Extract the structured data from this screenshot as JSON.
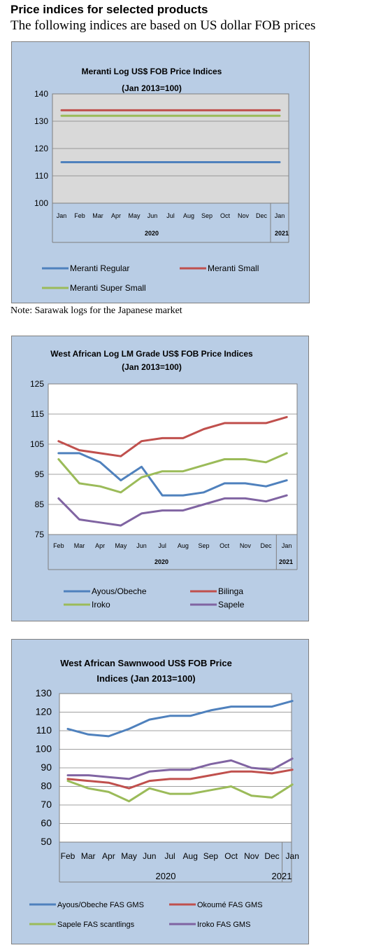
{
  "page": {
    "heading": "Price indices for selected products",
    "subheading": "The following indices are based on US dollar FOB prices",
    "note": "Note: Sarawak logs for the Japanese market"
  },
  "chart_data": [
    {
      "type": "line",
      "title": [
        "Meranti Log US$ FOB Price Indices",
        "(Jan 2013=100)"
      ],
      "categories": [
        "Jan",
        "Feb",
        "Mar",
        "Apr",
        "May",
        "Jun",
        "Jul",
        "Aug",
        "Sep",
        "Oct",
        "Nov",
        "Dec",
        "Jan"
      ],
      "year_labels": [
        "2020",
        "2021"
      ],
      "ylim": [
        100,
        140
      ],
      "yticks": [
        100,
        110,
        120,
        130,
        140
      ],
      "grid": true,
      "plot_background": "#d9d9d9",
      "legend_position": "bottom",
      "series": [
        {
          "name": "Meranti Regular",
          "color": "#4f81bd",
          "values": [
            115,
            115,
            115,
            115,
            115,
            115,
            115,
            115,
            115,
            115,
            115,
            115,
            115
          ]
        },
        {
          "name": "Meranti Small",
          "color": "#c0504d",
          "values": [
            134,
            134,
            134,
            134,
            134,
            134,
            134,
            134,
            134,
            134,
            134,
            134,
            134
          ]
        },
        {
          "name": "Meranti Super Small",
          "color": "#9bbb59",
          "values": [
            132,
            132,
            132,
            132,
            132,
            132,
            132,
            132,
            132,
            132,
            132,
            132,
            132
          ]
        }
      ]
    },
    {
      "type": "line",
      "title": [
        "West African Log LM Grade US$ FOB Price Indices",
        "(Jan 2013=100)"
      ],
      "categories": [
        "Feb",
        "Mar",
        "Apr",
        "May",
        "Jun",
        "Jul",
        "Aug",
        "Sep",
        "Oct",
        "Nov",
        "Dec",
        "Jan"
      ],
      "year_labels": [
        "2020",
        "2021"
      ],
      "ylim": [
        75,
        125
      ],
      "yticks": [
        75,
        85,
        95,
        105,
        115,
        125
      ],
      "grid": true,
      "plot_background": "#ffffff",
      "legend_position": "bottom",
      "series": [
        {
          "name": "Ayous/Obeche",
          "color": "#4f81bd",
          "values": [
            102,
            102,
            99,
            93,
            97.5,
            88,
            88,
            89,
            92,
            92,
            91,
            93
          ]
        },
        {
          "name": "Bilinga",
          "color": "#c0504d",
          "values": [
            106,
            103,
            102,
            101,
            106,
            107,
            107,
            110,
            112,
            112,
            112,
            114
          ]
        },
        {
          "name": "Iroko",
          "color": "#9bbb59",
          "values": [
            100,
            92,
            91,
            89,
            94,
            96,
            96,
            98,
            100,
            100,
            99,
            102
          ]
        },
        {
          "name": "Sapele",
          "color": "#8064a2",
          "values": [
            87,
            80,
            79,
            78,
            82,
            83,
            83,
            85,
            87,
            87,
            86,
            88
          ]
        }
      ]
    },
    {
      "type": "line",
      "title": [
        "West African Sawnwood US$ FOB Price",
        "Indices (Jan 2013=100)"
      ],
      "categories": [
        "Feb",
        "Mar",
        "Apr",
        "May",
        "Jun",
        "Jul",
        "Aug",
        "Sep",
        "Oct",
        "Nov",
        "Dec",
        "Jan"
      ],
      "year_labels": [
        "2020",
        "2021"
      ],
      "ylim": [
        50,
        130
      ],
      "yticks": [
        50,
        60,
        70,
        80,
        90,
        100,
        110,
        120,
        130
      ],
      "grid": true,
      "plot_background": "#ffffff",
      "legend_position": "bottom",
      "series": [
        {
          "name": "Ayous/Obeche FAS GMS",
          "color": "#4f81bd",
          "values": [
            111,
            108,
            107,
            111,
            116,
            118,
            118,
            121,
            123,
            123,
            123,
            126
          ]
        },
        {
          "name": "Okoumé FAS GMS",
          "color": "#c0504d",
          "values": [
            84,
            83,
            82,
            79,
            83,
            84,
            84,
            86,
            88,
            88,
            87,
            89
          ]
        },
        {
          "name": "Sapele FAS scantlings",
          "color": "#9bbb59",
          "values": [
            83,
            79,
            77,
            72,
            79,
            76,
            76,
            78,
            80,
            75,
            74,
            81
          ]
        },
        {
          "name": "Iroko FAS GMS",
          "color": "#8064a2",
          "values": [
            86,
            86,
            85,
            84,
            88,
            89,
            89,
            92,
            94,
            90,
            89,
            95
          ]
        }
      ]
    }
  ]
}
